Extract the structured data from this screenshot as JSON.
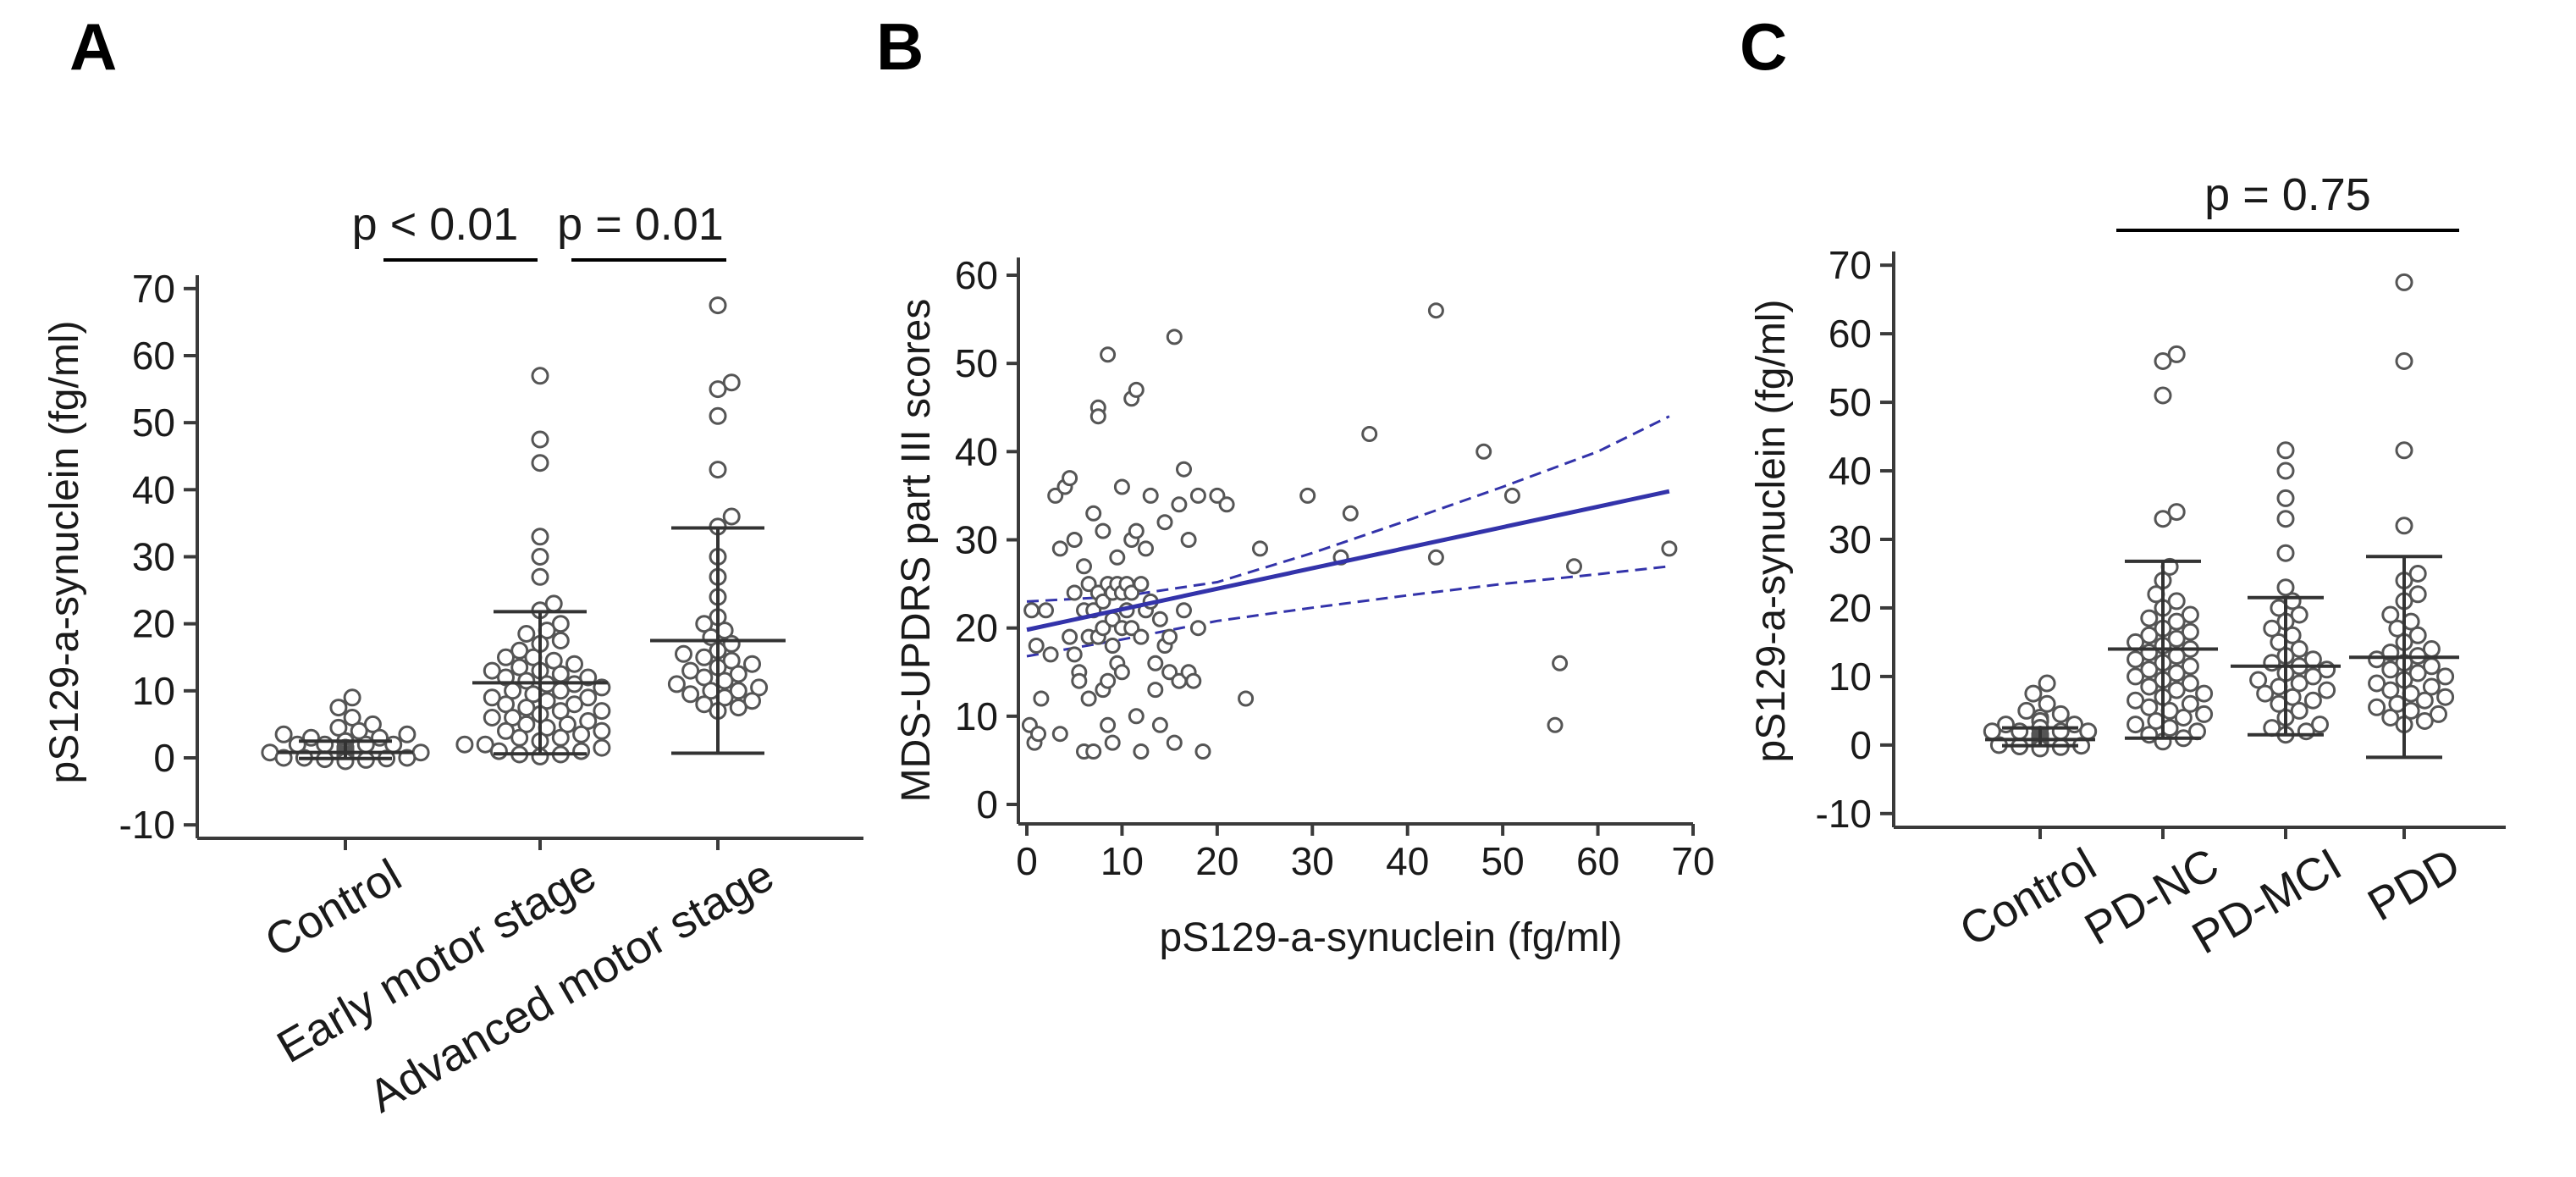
{
  "chart_data": [
    {
      "panel": "A",
      "type": "scatter",
      "ylabel": "pS129-a-synuclein (fg/ml)",
      "ylim": [
        -12,
        72
      ],
      "yticks": [
        -10,
        0,
        10,
        20,
        30,
        40,
        50,
        60,
        70
      ],
      "categories": [
        "Control",
        "Early motor stage",
        "Advanced motor stage"
      ],
      "groups": [
        {
          "name": "Control",
          "summary": {
            "center": 0.8,
            "low": -0.1,
            "high": 2.5
          },
          "values": [
            9,
            7.5,
            6,
            5,
            4.5,
            4,
            3.5,
            3.5,
            3,
            3,
            2.5,
            2.5,
            2.5,
            2,
            2,
            2,
            2,
            1.5,
            1.5,
            1.5,
            1.5,
            1.2,
            1,
            1,
            1,
            1,
            1,
            0.8,
            0.8,
            0.6,
            0.5,
            0.5,
            0.5,
            0.4,
            0.3,
            0.3,
            0.2,
            0.2,
            0.1,
            0,
            0,
            0,
            0,
            0,
            0,
            0,
            -0.1,
            -0.2,
            -0.3,
            -0.5
          ]
        },
        {
          "name": "Early motor stage",
          "summary": {
            "center": 11.2,
            "low": 0.6,
            "high": 21.8
          },
          "values": [
            57,
            47.5,
            44,
            33,
            30,
            27,
            23,
            22,
            20,
            19,
            18.5,
            17.5,
            17,
            16,
            15,
            15,
            14.5,
            14,
            13.5,
            13,
            13,
            12.5,
            12,
            12,
            11.5,
            11,
            11,
            10.5,
            10,
            10,
            9.5,
            9,
            9,
            8.5,
            8,
            8,
            7.5,
            7,
            7,
            6.5,
            6,
            6,
            5.5,
            5,
            5,
            4.5,
            4,
            4,
            3.5,
            3,
            3,
            2.5,
            2,
            2,
            1.5,
            1,
            1,
            0.5,
            0.5,
            0.2
          ]
        },
        {
          "name": "Advanced motor stage",
          "summary": {
            "center": 17.5,
            "low": 0.7,
            "high": 34.3
          },
          "values": [
            67.5,
            56,
            55,
            51,
            43,
            36,
            34.5,
            30,
            27,
            24,
            21,
            20,
            19,
            18,
            17,
            16,
            15.5,
            15,
            14.5,
            14,
            13.5,
            13,
            12.5,
            12,
            11.5,
            11,
            10.5,
            10,
            10,
            9.5,
            9,
            8.5,
            8,
            7.5,
            7
          ]
        }
      ],
      "annotations": [
        {
          "label": "p < 0.01",
          "from": "Control",
          "to": "Early motor stage"
        },
        {
          "label": "p = 0.01",
          "from": "Early motor stage",
          "to": "Advanced motor stage"
        }
      ]
    },
    {
      "panel": "B",
      "type": "scatter",
      "xlabel": "pS129-a-synuclein (fg/ml)",
      "ylabel": "MDS-UPDRS part III scores",
      "xlim": [
        -1,
        70
      ],
      "ylim": [
        -1,
        62
      ],
      "xticks": [
        0,
        10,
        20,
        30,
        40,
        50,
        60,
        70
      ],
      "yticks": [
        0,
        10,
        20,
        30,
        40,
        50,
        60
      ],
      "points": [
        [
          0.5,
          22
        ],
        [
          1,
          18
        ],
        [
          1.5,
          12
        ],
        [
          0.3,
          9
        ],
        [
          0.8,
          7
        ],
        [
          1.2,
          8
        ],
        [
          2,
          22
        ],
        [
          2.5,
          17
        ],
        [
          3,
          35
        ],
        [
          3.5,
          29
        ],
        [
          3.5,
          8
        ],
        [
          4,
          36
        ],
        [
          4.5,
          19
        ],
        [
          4.5,
          37
        ],
        [
          5,
          30
        ],
        [
          5,
          24
        ],
        [
          5,
          17
        ],
        [
          5.5,
          15
        ],
        [
          5.5,
          14
        ],
        [
          6,
          27
        ],
        [
          6,
          22
        ],
        [
          6,
          6
        ],
        [
          6.5,
          25
        ],
        [
          6.5,
          19
        ],
        [
          6.5,
          12
        ],
        [
          7,
          22
        ],
        [
          7,
          33
        ],
        [
          7,
          6
        ],
        [
          7.5,
          45
        ],
        [
          7.5,
          44
        ],
        [
          7.5,
          24
        ],
        [
          7.5,
          19
        ],
        [
          8,
          31
        ],
        [
          8,
          23
        ],
        [
          8,
          20
        ],
        [
          8,
          13
        ],
        [
          8.5,
          51
        ],
        [
          8.5,
          25
        ],
        [
          8.5,
          14
        ],
        [
          8.5,
          9
        ],
        [
          9,
          24
        ],
        [
          9,
          21
        ],
        [
          9,
          18
        ],
        [
          9,
          7
        ],
        [
          9.5,
          28
        ],
        [
          9.5,
          25
        ],
        [
          9.5,
          16
        ],
        [
          10,
          36
        ],
        [
          10,
          24
        ],
        [
          10,
          20
        ],
        [
          10,
          15
        ],
        [
          10.5,
          25
        ],
        [
          10.5,
          22
        ],
        [
          11,
          46
        ],
        [
          11,
          30
        ],
        [
          11,
          24
        ],
        [
          11,
          20
        ],
        [
          11.5,
          47
        ],
        [
          11.5,
          31
        ],
        [
          11.5,
          10
        ],
        [
          12,
          25
        ],
        [
          12,
          19
        ],
        [
          12,
          6
        ],
        [
          12.5,
          29
        ],
        [
          12.5,
          22
        ],
        [
          13,
          35
        ],
        [
          13,
          23
        ],
        [
          13.5,
          16
        ],
        [
          13.5,
          13
        ],
        [
          14,
          21
        ],
        [
          14,
          9
        ],
        [
          14.5,
          32
        ],
        [
          14.5,
          18
        ],
        [
          15,
          19
        ],
        [
          15,
          15
        ],
        [
          15.5,
          53
        ],
        [
          15.5,
          7
        ],
        [
          16,
          34
        ],
        [
          16,
          14
        ],
        [
          16.5,
          38
        ],
        [
          16.5,
          22
        ],
        [
          17,
          15
        ],
        [
          17,
          30
        ],
        [
          17.5,
          14
        ],
        [
          18,
          35
        ],
        [
          18,
          20
        ],
        [
          18.5,
          6
        ],
        [
          20,
          35
        ],
        [
          21,
          34
        ],
        [
          23,
          12
        ],
        [
          24.5,
          29
        ],
        [
          29.5,
          35
        ],
        [
          33,
          28
        ],
        [
          34,
          33
        ],
        [
          36,
          42
        ],
        [
          43,
          56
        ],
        [
          43,
          28
        ],
        [
          48,
          40
        ],
        [
          51,
          35
        ],
        [
          55.5,
          9
        ],
        [
          56,
          16
        ],
        [
          57.5,
          27
        ],
        [
          67.5,
          29
        ]
      ],
      "regression": {
        "x": [
          0,
          67.5
        ],
        "y": [
          19.8,
          35.5
        ]
      },
      "ci_upper": {
        "x": [
          0,
          10,
          20,
          30,
          40,
          50,
          60,
          67.5
        ],
        "y": [
          23,
          23.6,
          25.2,
          28.5,
          32.2,
          36,
          40,
          44
        ]
      },
      "ci_lower": {
        "x": [
          0,
          10,
          20,
          30,
          40,
          50,
          60,
          67.5
        ],
        "y": [
          16.8,
          18.7,
          20.8,
          22.3,
          23.7,
          25,
          26.1,
          27
        ]
      }
    },
    {
      "panel": "C",
      "type": "scatter",
      "ylabel": "pS129-a-synuclein (fg/ml)",
      "ylim": [
        -12,
        72
      ],
      "yticks": [
        -10,
        0,
        10,
        20,
        30,
        40,
        50,
        60,
        70
      ],
      "categories": [
        "Control",
        "PD-NC",
        "PD-MCI",
        "PDD"
      ],
      "groups": [
        {
          "name": "Control",
          "summary": {
            "center": 0.8,
            "low": -0.1,
            "high": 2.5
          },
          "values": [
            9,
            7.5,
            6,
            5,
            4.5,
            4,
            3.5,
            3.5,
            3,
            3,
            2.5,
            2.5,
            2.5,
            2,
            2,
            2,
            2,
            1.5,
            1.5,
            1.5,
            1.5,
            1.2,
            1,
            1,
            1,
            1,
            1,
            0.8,
            0.8,
            0.6,
            0.5,
            0.5,
            0.5,
            0.4,
            0.3,
            0.3,
            0.2,
            0.2,
            0.1,
            0,
            0,
            0,
            0,
            0,
            0,
            0,
            -0.1,
            -0.2,
            -0.3,
            -0.5
          ]
        },
        {
          "name": "PD-NC",
          "summary": {
            "center": 14,
            "low": 1,
            "high": 26.8
          },
          "values": [
            57,
            56,
            51,
            34,
            33,
            26,
            24,
            22,
            21,
            20,
            19,
            18.5,
            18,
            17,
            16.5,
            16,
            15.5,
            15,
            14.5,
            14,
            13.5,
            13,
            12.5,
            12,
            11.5,
            11,
            10.5,
            10,
            9.5,
            9,
            8.5,
            8,
            7.5,
            7,
            6.5,
            6,
            5.5,
            5,
            4.5,
            4,
            3.5,
            3,
            2.5,
            2,
            1.5,
            1,
            0.5
          ]
        },
        {
          "name": "PD-MCI",
          "summary": {
            "center": 11.5,
            "low": 1.5,
            "high": 21.5
          },
          "values": [
            43,
            40,
            36,
            33,
            28,
            23,
            21,
            20,
            19,
            18,
            17,
            16,
            15,
            14,
            13,
            12.5,
            12,
            11.5,
            11,
            10.5,
            10,
            9.5,
            9,
            8.5,
            8,
            7.5,
            7,
            6.5,
            6,
            5,
            4,
            3,
            2.5,
            2,
            1.5
          ]
        },
        {
          "name": "PDD",
          "summary": {
            "center": 12.8,
            "low": -1.8,
            "high": 27.5
          },
          "values": [
            67.5,
            56,
            43,
            32,
            25,
            24,
            22,
            21,
            19,
            18,
            17,
            16,
            15,
            14,
            13.5,
            13,
            12.5,
            12,
            11.5,
            11,
            10.5,
            10,
            9.5,
            9,
            8.5,
            8,
            7.5,
            7,
            6.5,
            6,
            5.5,
            5,
            4.5,
            4,
            3.5,
            3
          ]
        }
      ],
      "annotations": [
        {
          "label": "p = 0.75",
          "from": "PD-NC",
          "to": "PDD"
        }
      ]
    }
  ],
  "panel_letters": [
    "A",
    "B",
    "C"
  ],
  "colors": {
    "regression": "#3333aa",
    "dot_stroke": "#555555",
    "axis": "#3a3a3a"
  }
}
